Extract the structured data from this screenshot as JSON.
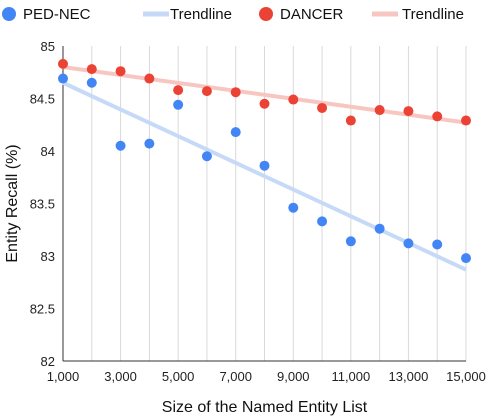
{
  "chart_data": {
    "type": "scatter",
    "xlabel": "Size of the Named Entity List",
    "ylabel": "Entity Recall (%)",
    "xlim": [
      1000,
      15000
    ],
    "ylim": [
      82,
      85
    ],
    "x_ticks": [
      1000,
      3000,
      5000,
      7000,
      9000,
      11000,
      13000,
      15000
    ],
    "x_tick_labels": [
      "1,000",
      "3,000",
      "5,000",
      "7,000",
      "9,000",
      "11,000",
      "13,000",
      "15,000"
    ],
    "y_ticks": [
      82,
      82.5,
      83,
      83.5,
      84,
      84.5,
      85
    ],
    "y_tick_labels": [
      "82",
      "82.5",
      "83",
      "83.5",
      "84",
      "84.5",
      "85"
    ],
    "grid": "vertical",
    "legend_position": "top",
    "x": [
      1000,
      2000,
      3000,
      4000,
      5000,
      6000,
      7000,
      8000,
      9000,
      10000,
      11000,
      12000,
      13000,
      14000,
      15000
    ],
    "series": [
      {
        "name": "PED-NEC",
        "color": "#4285F4",
        "values": [
          84.69,
          84.65,
          84.05,
          84.07,
          84.44,
          83.95,
          84.18,
          83.86,
          83.46,
          83.33,
          83.14,
          83.26,
          83.12,
          83.11,
          82.98
        ],
        "trendline": {
          "name": "Trendline",
          "color": "#C6DAF8",
          "from": [
            1000,
            84.65
          ],
          "to": [
            15000,
            82.87
          ]
        }
      },
      {
        "name": "DANCER",
        "color": "#EA4335",
        "values": [
          84.83,
          84.78,
          84.76,
          84.69,
          84.58,
          84.57,
          84.56,
          84.45,
          84.49,
          84.41,
          84.29,
          84.39,
          84.38,
          84.33,
          84.29
        ],
        "trendline": {
          "name": "Trendline",
          "color": "#F8C6C1",
          "from": [
            1000,
            84.8
          ],
          "to": [
            15000,
            84.27
          ]
        }
      }
    ]
  }
}
